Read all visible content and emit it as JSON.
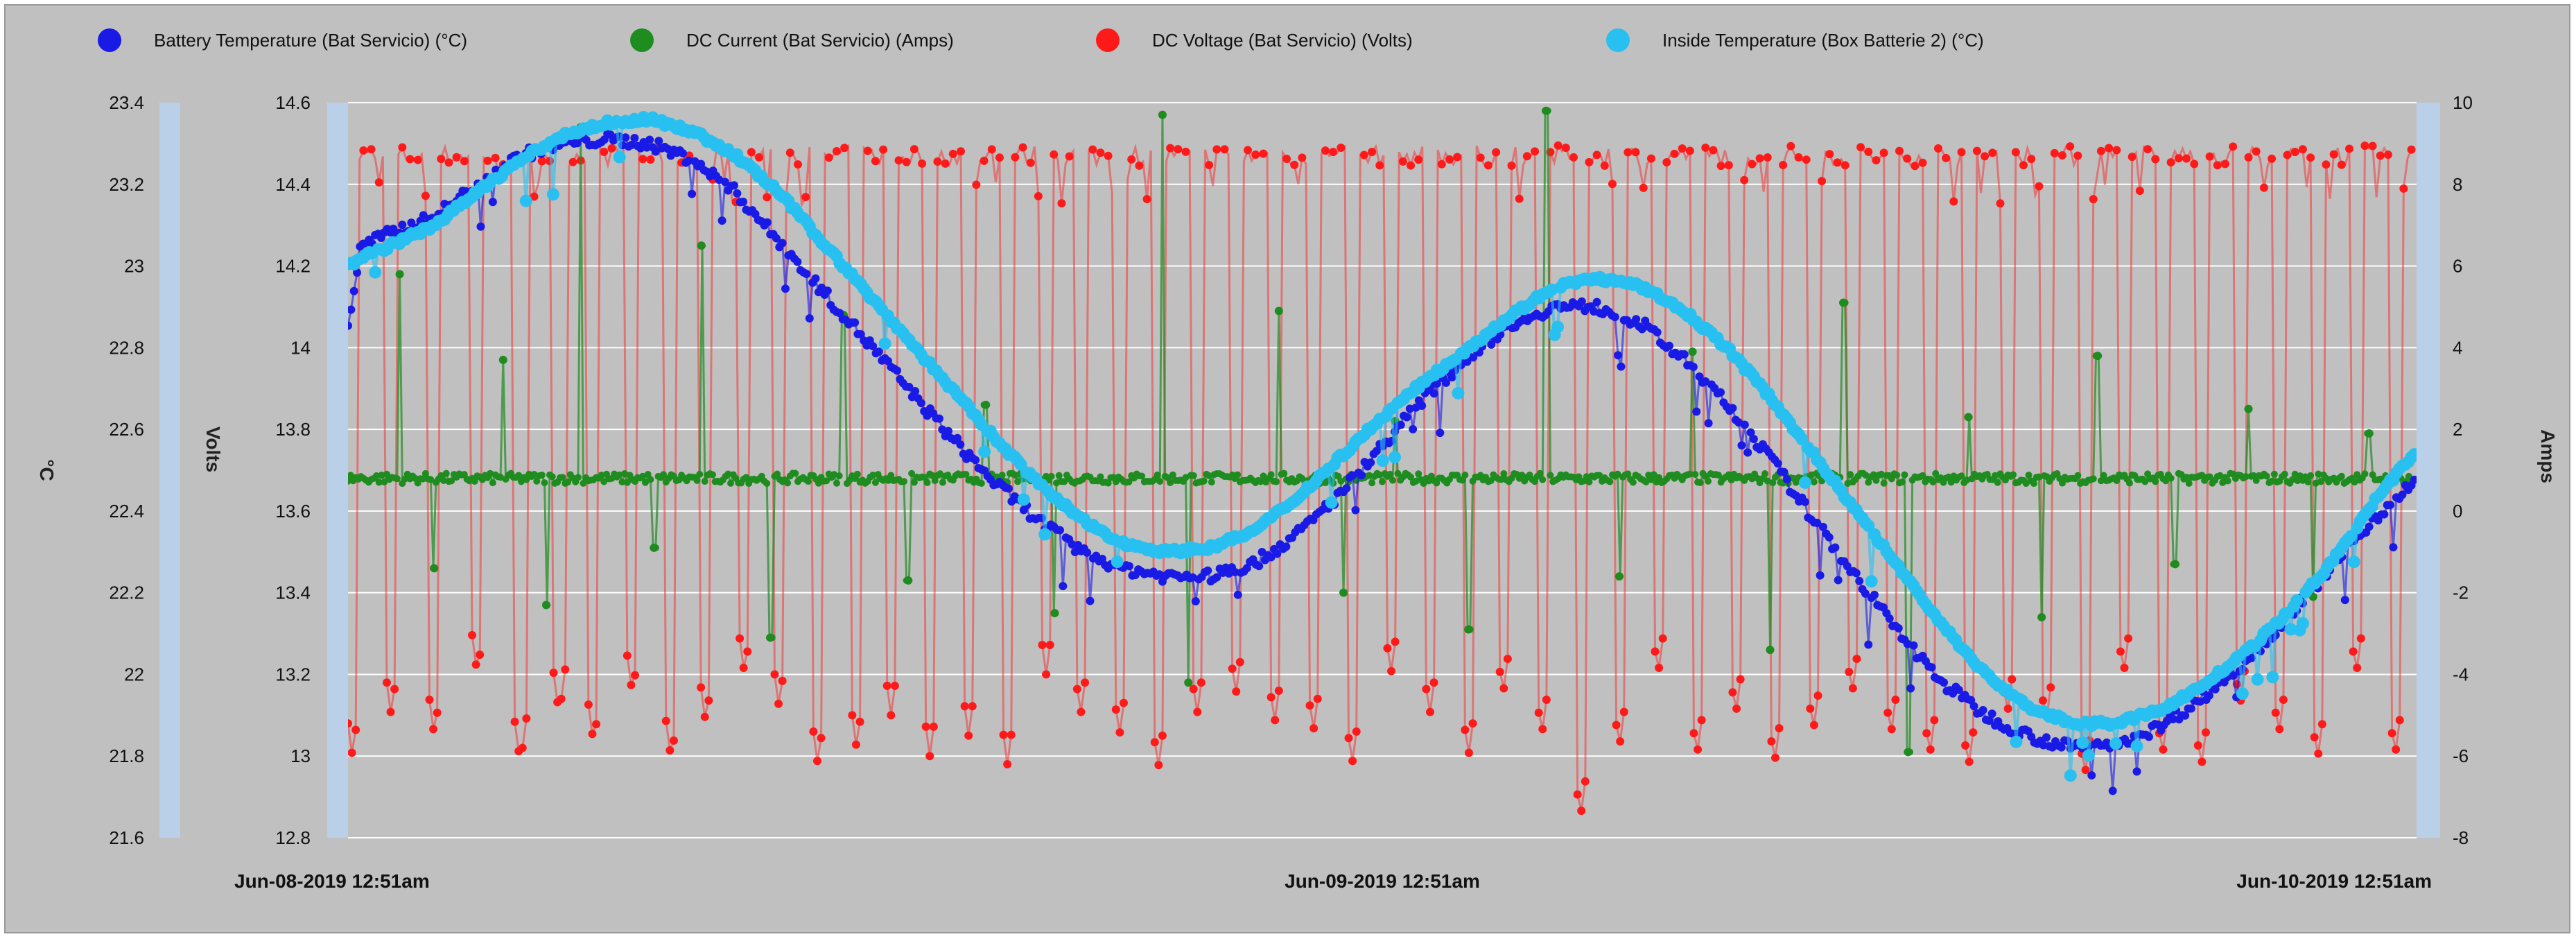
{
  "chart_data": {
    "type": "scatter",
    "title": "",
    "x_labels": [
      "Jun-08-2019 12:51am",
      "Jun-09-2019 12:51am",
      "Jun-10-2019 12:51am"
    ],
    "x_range_hours": [
      0,
      48
    ],
    "axes": {
      "temp": {
        "label": "°C",
        "ticks": [
          "23.4",
          "23.2",
          "23",
          "22.8",
          "22.6",
          "22.4",
          "22.2",
          "22",
          "21.8",
          "21.6"
        ],
        "range": [
          21.6,
          23.4
        ]
      },
      "volts": {
        "label": "Volts",
        "ticks": [
          "14.6",
          "14.4",
          "14.2",
          "14",
          "13.8",
          "13.6",
          "13.4",
          "13.2",
          "13",
          "12.8"
        ],
        "range": [
          12.8,
          14.6
        ]
      },
      "amps": {
        "label": "Amps",
        "ticks": [
          "10",
          "8",
          "6",
          "4",
          "2",
          "0",
          "-2",
          "-4",
          "-6",
          "-8"
        ],
        "range": [
          -8,
          10
        ]
      }
    },
    "legend": [
      {
        "name": "Battery Temperature (Bat Servicio) (°C)",
        "color": "#1a1ae6"
      },
      {
        "name": "DC Current (Bat Servicio) (Amps)",
        "color": "#1e8c1e"
      },
      {
        "name": "DC Voltage (Bat Servicio) (Volts)",
        "color": "#ff1a1a"
      },
      {
        "name": "Inside Temperature (Box Batterie 2) (°C)",
        "color": "#28c0f0"
      }
    ],
    "series": [
      {
        "name": "Battery Temperature (Bat Servicio) (°C)",
        "axis": "temp",
        "color": "#1a1ae6",
        "x": [
          0,
          0.3,
          1,
          2,
          3,
          4,
          5,
          6,
          7,
          8,
          9,
          10,
          11,
          12,
          13,
          14,
          15,
          16,
          17,
          18,
          19,
          20,
          21,
          22,
          23,
          24,
          25,
          26,
          27,
          28,
          29,
          30,
          31,
          32,
          33,
          34,
          35,
          36,
          37,
          38,
          39,
          40,
          41,
          42,
          43,
          44,
          45,
          46,
          47,
          48
        ],
        "values": [
          22.85,
          23.05,
          23.08,
          23.12,
          23.2,
          23.27,
          23.3,
          23.31,
          23.3,
          23.26,
          23.18,
          23.06,
          22.94,
          22.82,
          22.7,
          22.58,
          22.47,
          22.38,
          22.3,
          22.26,
          22.24,
          22.24,
          22.27,
          22.34,
          22.44,
          22.56,
          22.68,
          22.78,
          22.86,
          22.9,
          22.9,
          22.86,
          22.77,
          22.66,
          22.53,
          22.38,
          22.24,
          22.1,
          21.98,
          21.9,
          21.85,
          21.82,
          21.83,
          21.87,
          21.94,
          22.03,
          22.14,
          22.26,
          22.38,
          22.48
        ]
      },
      {
        "name": "Inside Temperature (Box Batterie 2) (°C)",
        "axis": "temp",
        "color": "#28c0f0",
        "x": [
          0,
          0.3,
          1,
          2,
          3,
          4,
          5,
          6,
          7,
          8,
          9,
          10,
          11,
          12,
          13,
          14,
          15,
          16,
          17,
          18,
          19,
          20,
          21,
          22,
          23,
          24,
          25,
          26,
          27,
          28,
          29,
          30,
          31,
          32,
          33,
          34,
          35,
          36,
          37,
          38,
          39,
          40,
          41,
          42,
          43,
          44,
          45,
          46,
          47,
          48
        ],
        "values": [
          23.0,
          23.02,
          23.05,
          23.1,
          23.18,
          23.26,
          23.32,
          23.35,
          23.36,
          23.33,
          23.27,
          23.18,
          23.06,
          22.94,
          22.82,
          22.7,
          22.58,
          22.47,
          22.38,
          22.32,
          22.3,
          22.31,
          22.35,
          22.43,
          22.53,
          22.63,
          22.72,
          22.8,
          22.88,
          22.95,
          22.97,
          22.95,
          22.89,
          22.8,
          22.68,
          22.54,
          22.4,
          22.26,
          22.12,
          22.0,
          21.92,
          21.88,
          21.88,
          21.91,
          21.97,
          22.05,
          22.15,
          22.27,
          22.42,
          22.55
        ]
      },
      {
        "name": "DC Current (Bat Servicio) (Amps)",
        "axis": "amps",
        "color": "#1e8c1e",
        "baseline": 0.8,
        "spike_x": [
          1.2,
          3.6,
          5.4,
          8.2,
          11.5,
          14.8,
          18.9,
          21.6,
          24.3,
          27.8,
          31.2,
          34.7,
          37.6,
          40.6,
          44.1,
          46.9
        ],
        "spike_hi": [
          5.8,
          3.7,
          9.4,
          6.5,
          4.8,
          2.6,
          9.7,
          4.9,
          2.2,
          9.8,
          3.9,
          5.1,
          2.3,
          3.8,
          2.5,
          1.9
        ],
        "dip_x": [
          2.0,
          4.6,
          7.1,
          9.8,
          13.0,
          16.4,
          19.5,
          23.1,
          26.0,
          29.5,
          33.0,
          36.2,
          39.3,
          42.4,
          45.6
        ],
        "dip_lo": [
          -1.4,
          -2.3,
          -0.9,
          -3.1,
          -1.7,
          -2.5,
          -4.2,
          -2.0,
          -2.9,
          -1.6,
          -3.4,
          -5.9,
          -2.6,
          -1.3,
          -2.1
        ]
      },
      {
        "name": "DC Voltage (Bat Servicio) (Volts)",
        "axis": "volts",
        "color": "#ff1a1a",
        "plateau": 14.47,
        "dip_x": [
          0.1,
          1.0,
          2.0,
          3.0,
          4.0,
          4.9,
          5.7,
          6.6,
          7.5,
          8.3,
          9.2,
          10.0,
          10.9,
          11.8,
          12.6,
          13.5,
          14.4,
          15.3,
          16.2,
          17.0,
          17.9,
          18.8,
          19.7,
          20.6,
          21.5,
          22.4,
          23.3,
          24.2,
          25.1,
          26.0,
          26.8,
          27.7,
          28.6,
          29.5,
          30.4,
          31.3,
          32.2,
          33.1,
          34.0,
          34.9,
          35.8,
          36.7,
          37.6,
          38.5,
          39.4,
          40.3,
          41.2,
          42.1,
          43.0,
          43.9,
          44.8,
          45.7,
          46.6,
          47.5
        ],
        "dip_lo": [
          13.0,
          13.1,
          13.05,
          13.2,
          12.98,
          13.1,
          13.03,
          13.15,
          12.99,
          13.08,
          13.2,
          13.12,
          12.98,
          13.02,
          13.1,
          13.0,
          13.05,
          12.98,
          13.2,
          13.1,
          13.05,
          12.97,
          13.1,
          13.15,
          13.08,
          13.06,
          12.98,
          13.2,
          13.1,
          13.0,
          13.15,
          13.05,
          12.85,
          13.02,
          13.2,
          13.0,
          13.1,
          12.98,
          13.06,
          13.15,
          13.05,
          13.0,
          12.97,
          13.1,
          13.08,
          12.95,
          13.2,
          13.0,
          12.97,
          13.12,
          13.05,
          12.99,
          13.2,
          13.0
        ]
      }
    ]
  }
}
